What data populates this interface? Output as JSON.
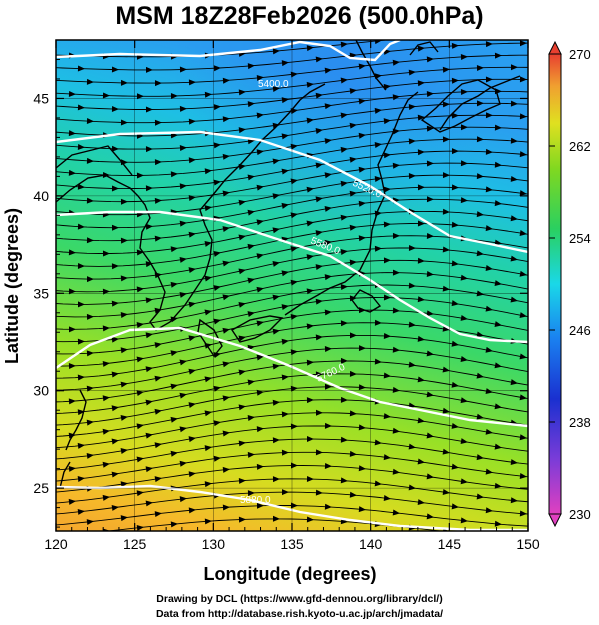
{
  "title": "MSM 18Z28Feb2026 (500.0hPa)",
  "map": {
    "xlabel": "Longitude (degrees)",
    "ylabel": "Latitude  (degrees)",
    "lon_range": [
      120,
      150
    ],
    "lat_range": [
      22.8,
      48
    ],
    "xticks": [
      "120",
      "125",
      "130",
      "135",
      "140",
      "145",
      "150"
    ],
    "yticks": [
      "25",
      "30",
      "35",
      "40",
      "45"
    ],
    "contour_labels": [
      "5400.0",
      "5520.0",
      "5580.0",
      "5760.0",
      "5880.0"
    ],
    "colorbar_ticks": [
      "270",
      "262",
      "254",
      "246",
      "238",
      "230"
    ],
    "colorbar_range": [
      230,
      270
    ],
    "colors": {
      "magenta": "#e040c0",
      "blue": "#1a30d0",
      "cyan": "#1ad8e8",
      "green": "#2ad060",
      "yellow_green": "#b8e020",
      "orange": "#f0a030",
      "red": "#e84030"
    }
  },
  "credits": {
    "line1": "Drawing by DCL (https://www.gfd-dennou.org/library/dcl/)",
    "line2": "Data from http://database.rish.kyoto-u.ac.jp/arch/jmadata/"
  }
}
